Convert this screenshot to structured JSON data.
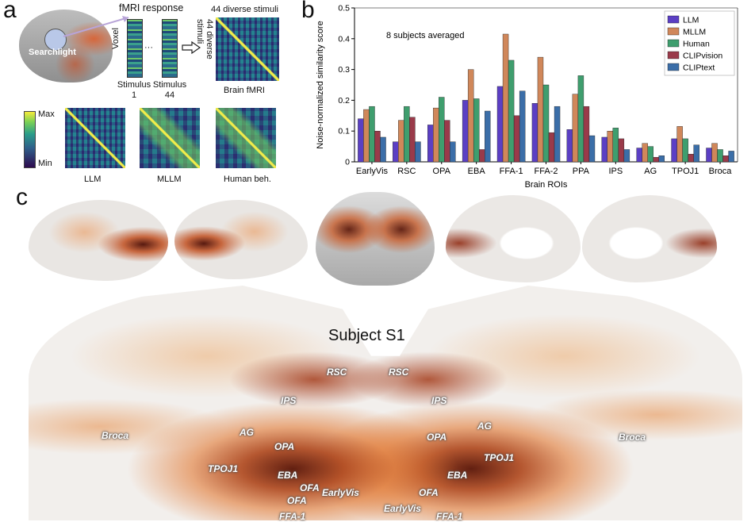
{
  "panel_a": {
    "letter": "a",
    "searchlight": "Searchlight",
    "fmri_response": "fMRI response",
    "voxel": "Voxel",
    "stimulus1": "Stimulus\n1",
    "stimulus44": "Stimulus\n44",
    "ellipsis": "···",
    "diverse_top": "44 diverse stimuli",
    "diverse_side": "44 diverse stimuli",
    "brain_fmri": "Brain fMRI",
    "colorbar_max": "Max",
    "colorbar_min": "Min",
    "rsm_labels": [
      "LLM",
      "MLLM",
      "Human beh."
    ]
  },
  "panel_b": {
    "letter": "b",
    "annotation": "8 subjects averaged"
  },
  "panel_c": {
    "letter": "c",
    "subject_label": "Subject S1",
    "rois_left": [
      "RSC",
      "IPS",
      "AG",
      "Broca",
      "OPA",
      "TPOJ1",
      "EBA",
      "OFA",
      "EarlyVis",
      "OFA",
      "FFA-1"
    ],
    "rois_right": [
      "RSC",
      "IPS",
      "AG",
      "OPA",
      "Broca",
      "TPOJ1",
      "EBA",
      "OFA",
      "EarlyVis",
      "FFA-1"
    ]
  },
  "chart_data": {
    "type": "bar",
    "ylabel": "Noise-normalized similarity score",
    "xlabel": "Brain ROIs",
    "ylim": [
      0,
      0.5
    ],
    "yticks": [
      "0",
      "0.1",
      "0.2",
      "0.3",
      "0.4",
      "0.5"
    ],
    "legend_position": "top-right",
    "categories": [
      "EarlyVis",
      "RSC",
      "OPA",
      "EBA",
      "FFA-1",
      "FFA-2",
      "PPA",
      "IPS",
      "AG",
      "TPOJ1",
      "Broca"
    ],
    "series": [
      {
        "name": "LLM",
        "color": "#5b3fc4",
        "values": [
          0.14,
          0.065,
          0.12,
          0.2,
          0.245,
          0.19,
          0.105,
          0.08,
          0.045,
          0.075,
          0.045
        ]
      },
      {
        "name": "MLLM",
        "color": "#d0875a",
        "values": [
          0.17,
          0.135,
          0.175,
          0.3,
          0.415,
          0.34,
          0.22,
          0.1,
          0.06,
          0.115,
          0.06
        ]
      },
      {
        "name": "Human",
        "color": "#3f9e6e",
        "values": [
          0.18,
          0.18,
          0.21,
          0.205,
          0.33,
          0.25,
          0.28,
          0.11,
          0.05,
          0.075,
          0.04
        ]
      },
      {
        "name": "CLIPvision",
        "color": "#9a3a4a",
        "values": [
          0.1,
          0.145,
          0.135,
          0.04,
          0.15,
          0.095,
          0.18,
          0.075,
          0.015,
          0.025,
          0.02
        ]
      },
      {
        "name": "CLIPtext",
        "color": "#3b6ea8",
        "values": [
          0.08,
          0.065,
          0.065,
          0.165,
          0.23,
          0.18,
          0.085,
          0.04,
          0.02,
          0.055,
          0.035
        ]
      }
    ]
  }
}
